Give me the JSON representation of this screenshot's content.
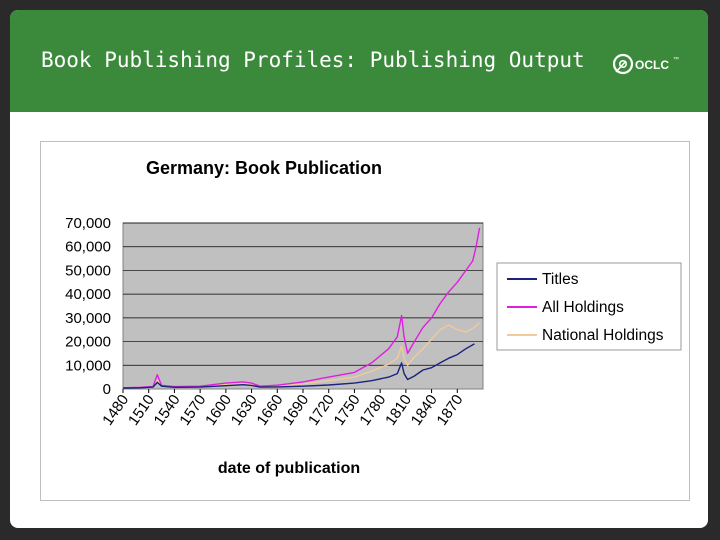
{
  "slide": {
    "title": "Book Publishing Profiles: Publishing Output",
    "logo_text": "OCLC",
    "logo_tm": "™"
  },
  "colors": {
    "header": "#3b8a3c",
    "plot_bg": "#c0c0c0",
    "titles": "#1a237e",
    "all_holdings": "#e01ee0",
    "national_holdings": "#f2c99a"
  },
  "chart_data": {
    "type": "line",
    "title": "Germany: Book Publication",
    "xlabel": "date of publication",
    "ylabel": "",
    "xlim": [
      1480,
      1900
    ],
    "ylim": [
      0,
      70000
    ],
    "y_ticks": [
      "0",
      "10,000",
      "20,000",
      "30,000",
      "40,000",
      "50,000",
      "60,000",
      "70,000"
    ],
    "x_ticks": [
      "1480",
      "1510",
      "1540",
      "1570",
      "1600",
      "1630",
      "1660",
      "1690",
      "1720",
      "1750",
      "1780",
      "1810",
      "1840",
      "1870"
    ],
    "grid": true,
    "legend_position": "right",
    "series": [
      {
        "name": "Titles",
        "color": "#1a237e",
        "points": [
          [
            1480,
            400
          ],
          [
            1500,
            500
          ],
          [
            1515,
            800
          ],
          [
            1520,
            2800
          ],
          [
            1525,
            1200
          ],
          [
            1540,
            700
          ],
          [
            1570,
            800
          ],
          [
            1600,
            1400
          ],
          [
            1620,
            1800
          ],
          [
            1630,
            1500
          ],
          [
            1640,
            800
          ],
          [
            1660,
            900
          ],
          [
            1690,
            1200
          ],
          [
            1720,
            1700
          ],
          [
            1750,
            2500
          ],
          [
            1770,
            3500
          ],
          [
            1790,
            5000
          ],
          [
            1800,
            6500
          ],
          [
            1805,
            11000
          ],
          [
            1808,
            6500
          ],
          [
            1812,
            4000
          ],
          [
            1820,
            5500
          ],
          [
            1830,
            8000
          ],
          [
            1840,
            9000
          ],
          [
            1850,
            11000
          ],
          [
            1860,
            13000
          ],
          [
            1870,
            14500
          ],
          [
            1880,
            17000
          ],
          [
            1890,
            19000
          ]
        ]
      },
      {
        "name": "All Holdings",
        "color": "#e01ee0",
        "points": [
          [
            1480,
            500
          ],
          [
            1500,
            700
          ],
          [
            1515,
            1000
          ],
          [
            1520,
            6000
          ],
          [
            1525,
            1500
          ],
          [
            1540,
            1000
          ],
          [
            1570,
            1200
          ],
          [
            1600,
            2500
          ],
          [
            1620,
            3000
          ],
          [
            1630,
            2500
          ],
          [
            1640,
            1200
          ],
          [
            1660,
            1600
          ],
          [
            1690,
            3000
          ],
          [
            1720,
            5000
          ],
          [
            1750,
            7000
          ],
          [
            1770,
            11000
          ],
          [
            1790,
            17000
          ],
          [
            1800,
            22000
          ],
          [
            1805,
            31000
          ],
          [
            1808,
            22000
          ],
          [
            1812,
            15000
          ],
          [
            1820,
            20000
          ],
          [
            1830,
            26000
          ],
          [
            1840,
            30000
          ],
          [
            1850,
            36000
          ],
          [
            1860,
            41000
          ],
          [
            1870,
            45000
          ],
          [
            1880,
            50000
          ],
          [
            1888,
            54000
          ],
          [
            1892,
            60000
          ],
          [
            1896,
            68000
          ]
        ]
      },
      {
        "name": "National Holdings",
        "color": "#f2c99a",
        "points": [
          [
            1480,
            450
          ],
          [
            1500,
            600
          ],
          [
            1515,
            900
          ],
          [
            1520,
            4000
          ],
          [
            1525,
            1300
          ],
          [
            1540,
            900
          ],
          [
            1570,
            1000
          ],
          [
            1600,
            2000
          ],
          [
            1620,
            2500
          ],
          [
            1630,
            2000
          ],
          [
            1640,
            1000
          ],
          [
            1660,
            1300
          ],
          [
            1690,
            2200
          ],
          [
            1720,
            3500
          ],
          [
            1750,
            5000
          ],
          [
            1770,
            7500
          ],
          [
            1790,
            10500
          ],
          [
            1800,
            13000
          ],
          [
            1805,
            18000
          ],
          [
            1808,
            13000
          ],
          [
            1812,
            10000
          ],
          [
            1820,
            13500
          ],
          [
            1830,
            17000
          ],
          [
            1840,
            21000
          ],
          [
            1850,
            25000
          ],
          [
            1860,
            27000
          ],
          [
            1870,
            25000
          ],
          [
            1880,
            24000
          ],
          [
            1890,
            26000
          ],
          [
            1896,
            28000
          ]
        ]
      }
    ]
  }
}
